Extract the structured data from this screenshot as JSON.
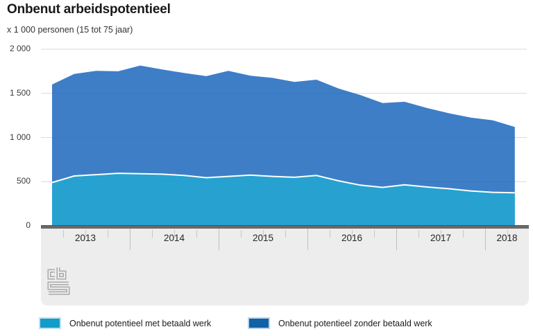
{
  "page": {
    "title": "Onbenut arbeidspotentieel",
    "subtitle": "x 1 000 personen (15 tot 75 jaar)"
  },
  "chart_data": {
    "type": "area",
    "stacked": true,
    "title": "Onbenut arbeidspotentieel",
    "unit_label": "x 1 000 personen (15 tot 75 jaar)",
    "x_interval": "quarter",
    "quarters": [
      "2013 Q1",
      "2013 Q2",
      "2013 Q3",
      "2013 Q4",
      "2014 Q1",
      "2014 Q2",
      "2014 Q3",
      "2014 Q4",
      "2015 Q1",
      "2015 Q2",
      "2015 Q3",
      "2015 Q4",
      "2016 Q1",
      "2016 Q2",
      "2016 Q3",
      "2016 Q4",
      "2017 Q1",
      "2017 Q2",
      "2017 Q3",
      "2017 Q4",
      "2018 Q1",
      "2018 Q2"
    ],
    "years": [
      "2013",
      "2014",
      "2015",
      "2016",
      "2017",
      "2018"
    ],
    "series": [
      {
        "name": "Onbenut potentieel met betaald werk",
        "color": "#23a8d1",
        "values": [
          490,
          565,
          580,
          595,
          590,
          585,
          570,
          545,
          560,
          575,
          560,
          550,
          570,
          510,
          460,
          435,
          465,
          440,
          420,
          395,
          380,
          375
        ]
      },
      {
        "name": "Onbenut potentieel zonder betaald werk",
        "color": "#1c67bd",
        "values": [
          1110,
          1155,
          1175,
          1155,
          1225,
          1185,
          1160,
          1150,
          1195,
          1125,
          1115,
          1080,
          1085,
          1045,
          1020,
          955,
          940,
          895,
          855,
          830,
          815,
          745
        ]
      }
    ],
    "stacked_totals": [
      1600,
      1720,
      1755,
      1750,
      1815,
      1770,
      1730,
      1695,
      1755,
      1700,
      1675,
      1630,
      1655,
      1555,
      1480,
      1390,
      1405,
      1335,
      1275,
      1225,
      1195,
      1120
    ],
    "ylim": [
      0,
      2000
    ],
    "y_tick_values": [
      2000,
      1500,
      1000,
      500,
      0
    ],
    "y_tick_labels": [
      "2 000",
      "1 500",
      "1 000",
      "500",
      "0"
    ],
    "grid": true,
    "legend_position": "bottom",
    "colors": {
      "gridline": "#d9d9d9",
      "boundary_line": "#ffffff",
      "axis_band": "#ededed",
      "axis_bar": "#696969"
    }
  },
  "legend": {
    "items": [
      {
        "label": "Onbenut potentieel met betaald werk",
        "color": "#139cc7",
        "border_color": "#bce2ef"
      },
      {
        "label": "Onbenut potentieel zonder betaald werk",
        "color": "#1061a5",
        "border_color": "#bcd2e8"
      }
    ]
  },
  "branding": {
    "logo": "cbs-logo"
  }
}
